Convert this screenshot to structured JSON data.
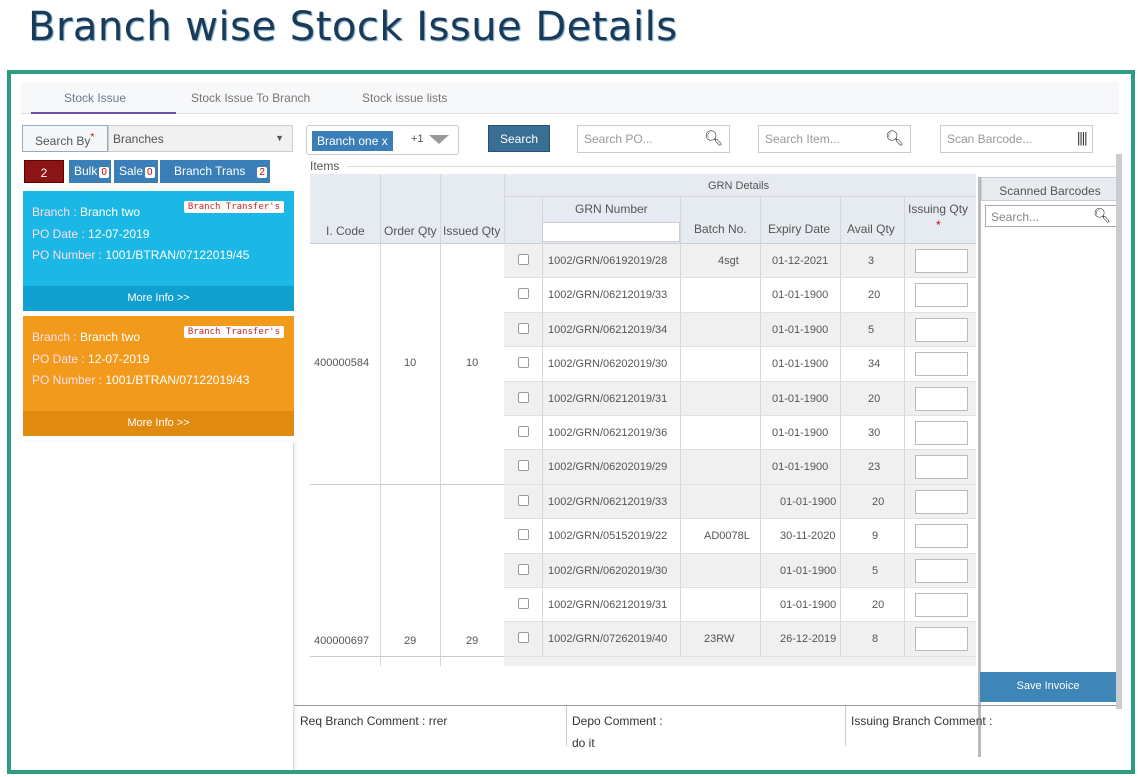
{
  "page_title": "Branch wise Stock Issue Details",
  "tabs": [
    "Stock Issue",
    "Stock Issue To Branch",
    "Stock issue lists"
  ],
  "search_by": {
    "label": "Search By",
    "required_mark": "*",
    "value": "Branches"
  },
  "counts": {
    "total": "2",
    "bulk_label": "Bulk",
    "bulk_count": "0",
    "sale_label": "Sale",
    "sale_count": "0",
    "branch_trans_label": "Branch Trans",
    "branch_trans_count": "2"
  },
  "cards": [
    {
      "branch_label": "Branch :",
      "branch": "Branch two",
      "tag": "Branch Transfer's",
      "po_date_label": "PO Date :",
      "po_date": "12-07-2019",
      "po_number_label": "PO Number :",
      "po_number": "1001/BTRAN/07122019/45",
      "more": "More Info >>",
      "color": "#1bb8e6"
    },
    {
      "branch_label": "Branch :",
      "branch": "Branch two",
      "tag": "Branch Transfer's",
      "po_date_label": "PO Date :",
      "po_date": "12-07-2019",
      "po_number_label": "PO Number :",
      "po_number": "1001/BTRAN/07122019/43",
      "more": "More Info >>",
      "color": "#f19a1b"
    }
  ],
  "filter": {
    "branch_pill": "Branch one x",
    "extra": "+1"
  },
  "search_button": "Search",
  "search_po_placeholder": "Search PO...",
  "search_item_placeholder": "Search Item...",
  "scan_barcode_placeholder": "Scan Barcode...",
  "items_label": "Items",
  "table": {
    "headers": {
      "icode": "I. Code",
      "order_qty": "Order Qty",
      "issued_qty": "Issued Qty",
      "grn_details": "GRN Details",
      "grn_number": "GRN Number",
      "batch": "Batch No.",
      "expiry": "Expiry Date",
      "avail": "Avail Qty",
      "issuing": "Issuing Qty",
      "issuing_req": "*"
    },
    "groups": [
      {
        "icode": "400000584",
        "order_qty": "10",
        "issued_qty": "10",
        "rows": [
          {
            "grn": "1002/GRN/06192019/28",
            "batch": "4sgt",
            "expiry": "01-12-2021",
            "avail": "3"
          },
          {
            "grn": "1002/GRN/06212019/33",
            "batch": "",
            "expiry": "01-01-1900",
            "avail": "20"
          },
          {
            "grn": "1002/GRN/06212019/34",
            "batch": "",
            "expiry": "01-01-1900",
            "avail": "5"
          },
          {
            "grn": "1002/GRN/06202019/30",
            "batch": "",
            "expiry": "01-01-1900",
            "avail": "34"
          },
          {
            "grn": "1002/GRN/06212019/31",
            "batch": "",
            "expiry": "01-01-1900",
            "avail": "20"
          },
          {
            "grn": "1002/GRN/06212019/36",
            "batch": "",
            "expiry": "01-01-1900",
            "avail": "30"
          },
          {
            "grn": "1002/GRN/06202019/29",
            "batch": "",
            "expiry": "01-01-1900",
            "avail": "23"
          }
        ]
      },
      {
        "icode": "400000697",
        "order_qty": "29",
        "issued_qty": "29",
        "rows": [
          {
            "grn": "1002/GRN/06212019/33",
            "batch": "",
            "expiry": "01-01-1900",
            "avail": "20"
          },
          {
            "grn": "1002/GRN/05152019/22",
            "batch": "AD0078L",
            "expiry": "30-11-2020",
            "avail": "9"
          },
          {
            "grn": "1002/GRN/06202019/30",
            "batch": "",
            "expiry": "01-01-1900",
            "avail": "5"
          },
          {
            "grn": "1002/GRN/06212019/31",
            "batch": "",
            "expiry": "01-01-1900",
            "avail": "20"
          },
          {
            "grn": "1002/GRN/07262019/40",
            "batch": "23RW",
            "expiry": "26-12-2019",
            "avail": "8"
          }
        ]
      }
    ]
  },
  "scanned": {
    "title": "Scanned Barcodes",
    "placeholder": "Search..."
  },
  "save_button": "Save Invoice",
  "comments": {
    "req_label": "Req Branch Comment :",
    "req_value": "rrer",
    "depo_label": "Depo Comment :",
    "depo_value": "do it",
    "issuing_label": "Issuing Branch Comment :"
  }
}
